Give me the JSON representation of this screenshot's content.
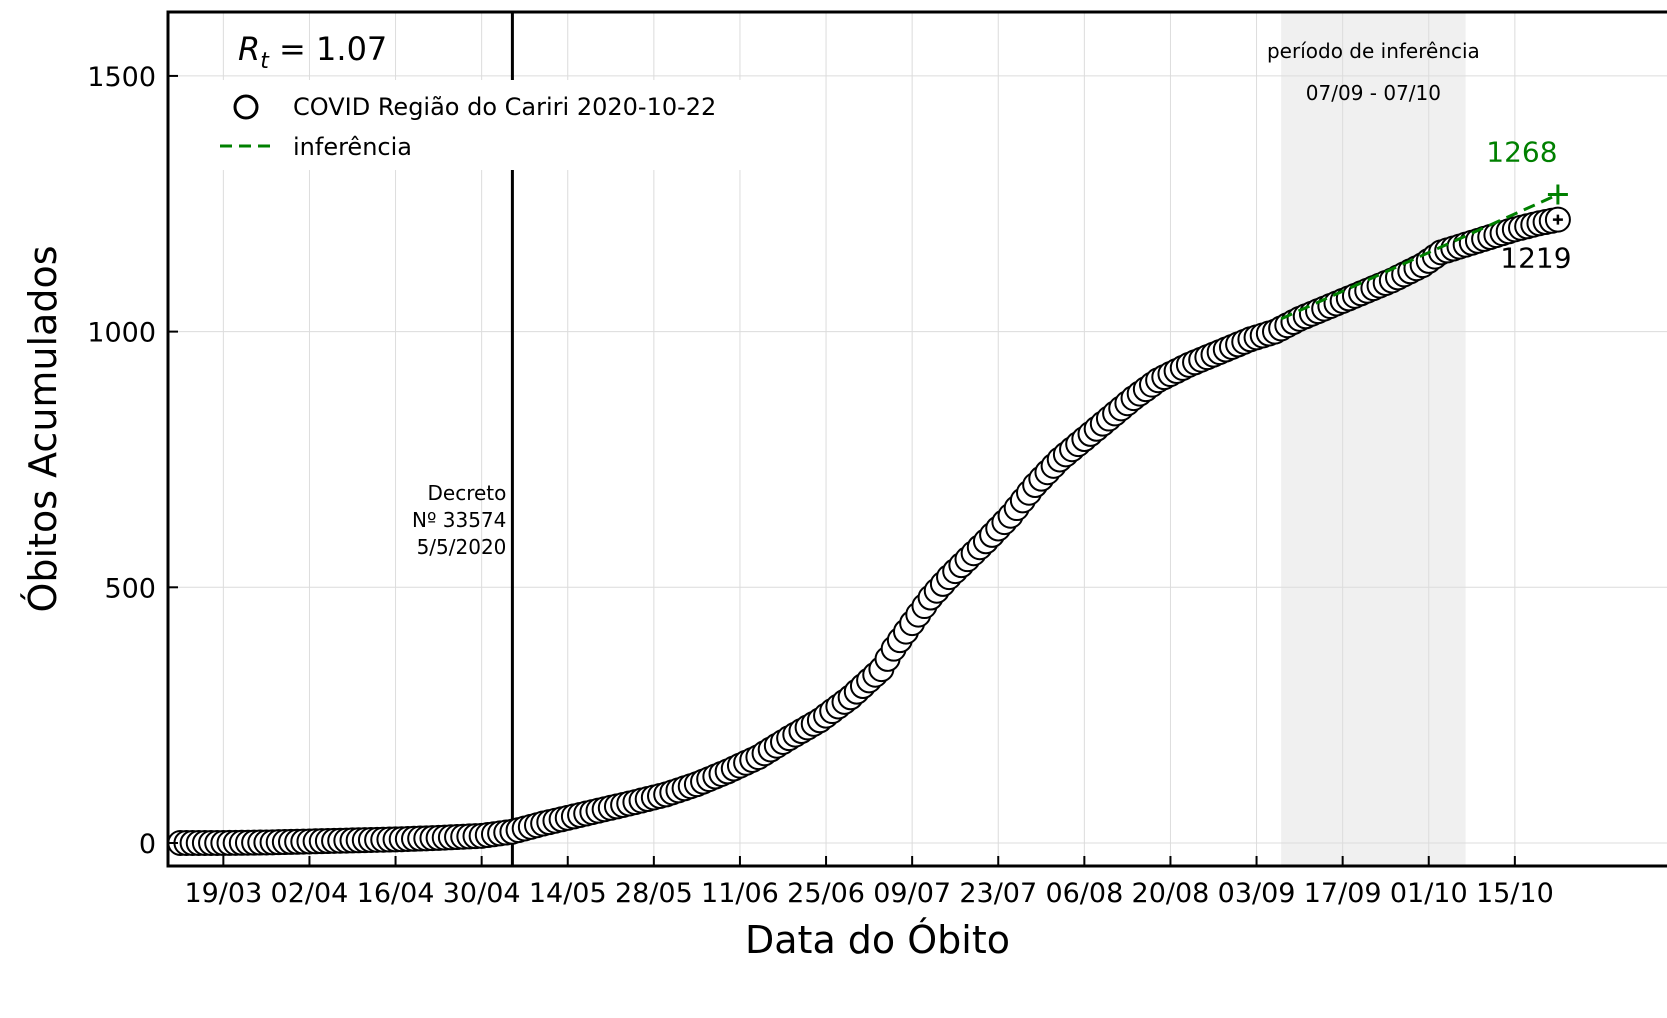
{
  "colors": {
    "observed_marker_edge": "#000000",
    "observed_marker_face": "#ffffff",
    "inference_line": "#008000",
    "inference_period_shade": "#f0f0f0",
    "grid": "#dcdcdc",
    "decree_line": "#000000"
  },
  "chart_data": {
    "type": "scatter",
    "xlabel": "Data do Óbito",
    "ylabel": "Óbitos Acumulados",
    "ylim": [
      -45,
      1625
    ],
    "xlim": [
      "2020-03-10",
      "2020-10-25"
    ],
    "yticks": [
      0,
      500,
      1000,
      1500
    ],
    "xtick_labels": [
      "19/03",
      "02/04",
      "16/04",
      "30/04",
      "14/05",
      "28/05",
      "11/06",
      "25/06",
      "09/07",
      "23/07",
      "06/08",
      "20/08",
      "03/09",
      "17/09",
      "01/10",
      "15/10"
    ],
    "xtick_dates": [
      "2020-03-19",
      "2020-04-02",
      "2020-04-16",
      "2020-04-30",
      "2020-05-14",
      "2020-05-28",
      "2020-06-11",
      "2020-06-25",
      "2020-07-09",
      "2020-07-23",
      "2020-08-06",
      "2020-08-20",
      "2020-09-03",
      "2020-09-17",
      "2020-10-01",
      "2020-10-15"
    ],
    "grid": true,
    "legend_position": "top-left",
    "series": [
      {
        "name": "COVID Região do Cariri 2020-10-22",
        "marker": "open-circle",
        "points": [
          [
            "2020-03-12",
            0
          ],
          [
            "2020-03-19",
            0
          ],
          [
            "2020-03-26",
            1
          ],
          [
            "2020-04-02",
            3
          ],
          [
            "2020-04-09",
            5
          ],
          [
            "2020-04-16",
            7
          ],
          [
            "2020-04-23",
            10
          ],
          [
            "2020-04-30",
            14
          ],
          [
            "2020-05-05",
            22
          ],
          [
            "2020-05-10",
            38
          ],
          [
            "2020-05-15",
            52
          ],
          [
            "2020-05-20",
            66
          ],
          [
            "2020-05-25",
            80
          ],
          [
            "2020-05-30",
            95
          ],
          [
            "2020-06-04",
            115
          ],
          [
            "2020-06-09",
            140
          ],
          [
            "2020-06-14",
            168
          ],
          [
            "2020-06-19",
            205
          ],
          [
            "2020-06-24",
            240
          ],
          [
            "2020-06-29",
            285
          ],
          [
            "2020-07-04",
            340
          ],
          [
            "2020-07-06",
            380
          ],
          [
            "2020-07-09",
            430
          ],
          [
            "2020-07-12",
            480
          ],
          [
            "2020-07-15",
            520
          ],
          [
            "2020-07-18",
            555
          ],
          [
            "2020-07-21",
            590
          ],
          [
            "2020-07-25",
            640
          ],
          [
            "2020-07-29",
            700
          ],
          [
            "2020-08-02",
            750
          ],
          [
            "2020-08-06",
            790
          ],
          [
            "2020-08-10",
            830
          ],
          [
            "2020-08-14",
            870
          ],
          [
            "2020-08-18",
            905
          ],
          [
            "2020-08-23",
            935
          ],
          [
            "2020-08-28",
            960
          ],
          [
            "2020-09-02",
            985
          ],
          [
            "2020-09-06",
            1000
          ],
          [
            "2020-09-10",
            1025
          ],
          [
            "2020-09-15",
            1050
          ],
          [
            "2020-09-20",
            1075
          ],
          [
            "2020-09-25",
            1100
          ],
          [
            "2020-09-30",
            1130
          ],
          [
            "2020-10-03",
            1155
          ],
          [
            "2020-10-07",
            1170
          ],
          [
            "2020-10-11",
            1185
          ],
          [
            "2020-10-15",
            1200
          ],
          [
            "2020-10-19",
            1212
          ],
          [
            "2020-10-22",
            1219
          ]
        ]
      },
      {
        "name": "inferência",
        "style": "dashed",
        "points": [
          [
            "2020-09-07",
            1025
          ],
          [
            "2020-10-22",
            1268
          ]
        ]
      }
    ],
    "annotations": {
      "rt": "1.07",
      "decree": {
        "date": "2020-05-05",
        "lines": [
          "Decreto",
          "Nº 33574",
          "5/5/2020"
        ]
      },
      "inference_period": {
        "start": "2020-09-07",
        "end": "2020-10-07",
        "title": "período de inferência",
        "range": "07/09 - 07/10"
      },
      "end_inferred": {
        "date": "2020-10-22",
        "value": 1268,
        "label": "1268"
      },
      "end_observed": {
        "date": "2020-10-22",
        "value": 1219,
        "label": "1219"
      }
    }
  }
}
